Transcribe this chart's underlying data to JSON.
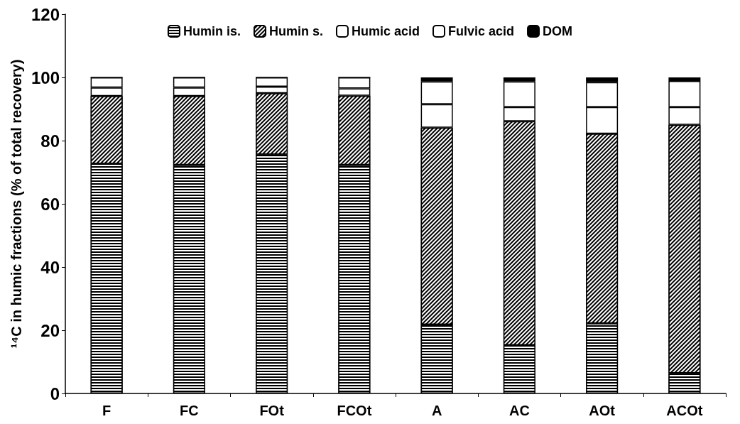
{
  "chart_data": {
    "type": "bar",
    "stacked": true,
    "ylabel": "¹⁴C in humic fractions (% of total recovery)",
    "categories": [
      "F",
      "FC",
      "FOt",
      "FCOt",
      "A",
      "AC",
      "AOt",
      "ACOt"
    ],
    "series": [
      {
        "name": "Humin is.",
        "color": "#000000",
        "values": [
          72.7,
          72.3,
          75.6,
          72.3,
          21.8,
          15.3,
          22.2,
          6.4
        ]
      },
      {
        "name": "Humin s.",
        "color": "#000000",
        "values": [
          21.4,
          21.8,
          19.4,
          21.9,
          62.3,
          70.8,
          60.0,
          78.6
        ]
      },
      {
        "name": "Humic acid",
        "color": "#ffffff",
        "values": [
          2.7,
          2.7,
          2.1,
          2.3,
          7.4,
          4.5,
          8.4,
          5.6
        ]
      },
      {
        "name": "Fulvic acid",
        "color": "#ffffff",
        "values": [
          3.2,
          3.2,
          2.9,
          3.5,
          7.2,
          8.1,
          7.9,
          8.3
        ]
      },
      {
        "name": "DOM",
        "color": "#000000",
        "values": [
          0,
          0,
          0,
          0,
          1.3,
          1.3,
          1.5,
          1.1
        ]
      }
    ],
    "ylim": [
      0,
      120
    ],
    "yticks": [
      0,
      20,
      40,
      60,
      80,
      100,
      120
    ],
    "grid": false,
    "legend": "top"
  }
}
